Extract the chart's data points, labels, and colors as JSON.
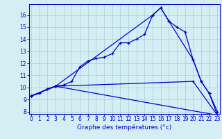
{
  "xlabel": "Graphe des températures (°c)",
  "background_color": "#d4eef4",
  "grid_color": "#a8ccd8",
  "line_color": "#0000cc",
  "x_ticks": [
    0,
    1,
    2,
    3,
    4,
    5,
    6,
    7,
    8,
    9,
    10,
    11,
    12,
    13,
    14,
    15,
    16,
    17,
    18,
    19,
    20,
    21,
    22,
    23
  ],
  "y_ticks": [
    8,
    9,
    10,
    11,
    12,
    13,
    14,
    15,
    16
  ],
  "ylim": [
    7.8,
    16.9
  ],
  "xlim": [
    -0.3,
    23.3
  ],
  "line1_x": [
    0,
    1,
    2,
    3,
    4,
    5,
    6,
    7,
    8,
    9,
    10,
    11,
    12,
    13,
    14,
    15,
    16,
    17,
    18,
    19,
    20,
    21,
    22,
    23
  ],
  "line1_y": [
    9.3,
    9.5,
    9.9,
    10.1,
    10.2,
    10.5,
    11.7,
    12.2,
    12.4,
    12.5,
    12.8,
    13.7,
    13.7,
    14.0,
    14.4,
    16.0,
    16.6,
    15.5,
    15.0,
    14.6,
    12.3,
    10.5,
    9.5,
    8.0
  ],
  "line2_x": [
    0,
    3,
    23
  ],
  "line2_y": [
    9.3,
    10.1,
    7.7
  ],
  "line3_x": [
    0,
    3,
    20,
    23
  ],
  "line3_y": [
    9.3,
    10.1,
    10.5,
    7.7
  ],
  "line4_x": [
    0,
    3,
    15,
    16,
    17,
    20,
    21,
    22,
    23
  ],
  "line4_y": [
    9.3,
    10.1,
    16.0,
    16.6,
    15.5,
    12.3,
    10.5,
    9.5,
    7.7
  ],
  "xlabel_fontsize": 6.5,
  "tick_fontsize": 5.5
}
